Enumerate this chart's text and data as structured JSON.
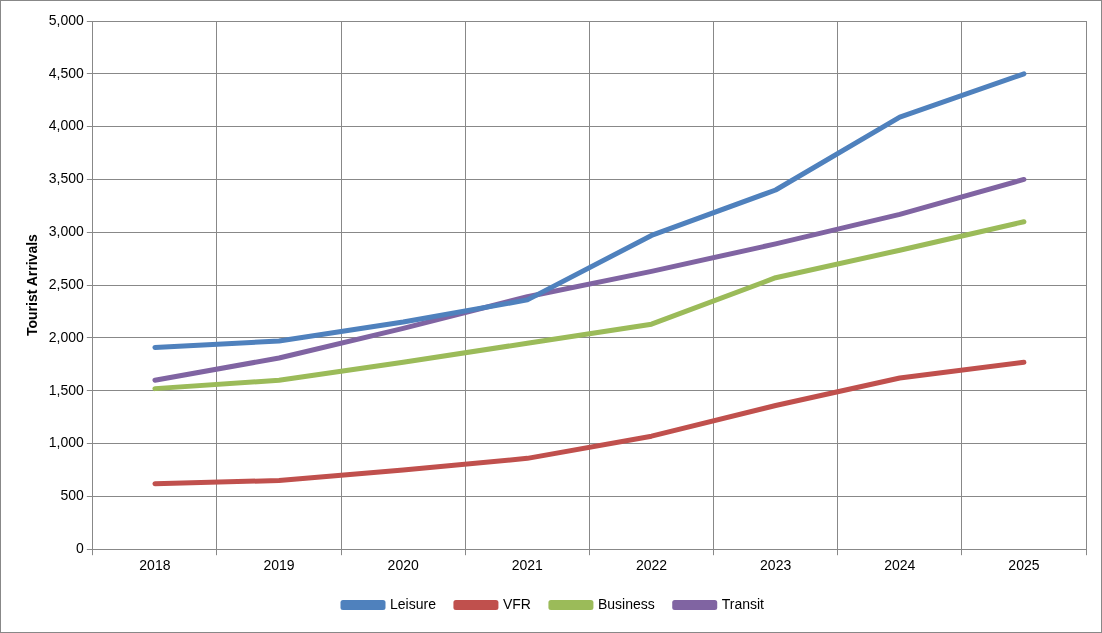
{
  "chart_data": {
    "type": "line",
    "ylabel": "Tourist Arrivals",
    "categories": [
      "2018",
      "2019",
      "2020",
      "2021",
      "2022",
      "2023",
      "2024",
      "2025"
    ],
    "series": [
      {
        "name": "Leisure",
        "color": "#4f81bd",
        "values": [
          1910,
          1970,
          2150,
          2360,
          2970,
          3400,
          4090,
          4500
        ]
      },
      {
        "name": "VFR",
        "color": "#c0504d",
        "values": [
          620,
          650,
          750,
          860,
          1070,
          1360,
          1620,
          1770
        ]
      },
      {
        "name": "Business",
        "color": "#9bbb59",
        "values": [
          1520,
          1600,
          1770,
          1950,
          2130,
          2570,
          2830,
          3100
        ]
      },
      {
        "name": "Transit",
        "color": "#8064a2",
        "values": [
          1600,
          1810,
          2090,
          2390,
          2630,
          2890,
          3170,
          3500
        ]
      }
    ],
    "ylim": [
      0,
      5000
    ],
    "yticks": [
      0,
      500,
      {
        "value": 1000,
        "label": "1,000"
      },
      {
        "value": 1500,
        "label": "1,500"
      },
      {
        "value": 2000,
        "label": "2,000"
      },
      {
        "value": 2500,
        "label": "2,500"
      },
      {
        "value": 3000,
        "label": "3,000"
      },
      {
        "value": 3500,
        "label": "3,500"
      },
      {
        "value": 4000,
        "label": "4,000"
      },
      {
        "value": 4500,
        "label": "4,500"
      },
      {
        "value": 5000,
        "label": "5,000"
      }
    ],
    "grid": true,
    "legend": "bottom",
    "marker": "none",
    "line_style": "solid"
  }
}
